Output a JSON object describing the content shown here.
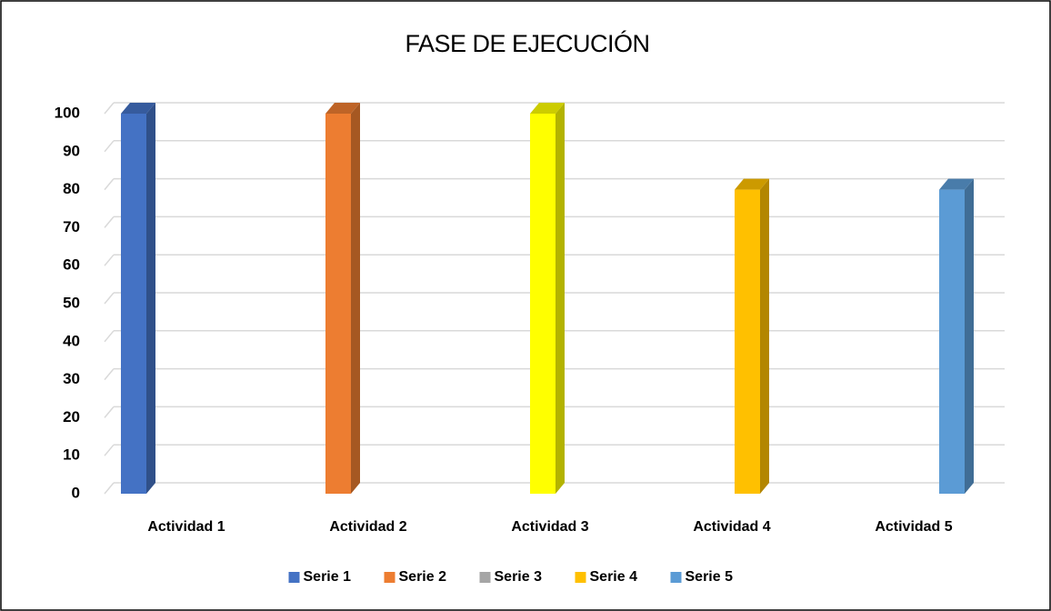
{
  "chart_data": {
    "type": "bar3d",
    "title": "FASE DE EJECUCIÓN",
    "categories": [
      "Actividad 1",
      "Actividad 2",
      "Actividad 3",
      "Actividad 4",
      "Actividad 5"
    ],
    "series": [
      {
        "name": "Serie 1",
        "color": "#4472c4",
        "values": [
          100,
          null,
          null,
          null,
          null
        ]
      },
      {
        "name": "Serie 2",
        "color": "#ed7d31",
        "values": [
          null,
          100,
          null,
          null,
          null
        ]
      },
      {
        "name": "Serie 3",
        "color": "#a5a5a5",
        "bar_color": "#ffff00",
        "values": [
          null,
          null,
          100,
          null,
          null
        ]
      },
      {
        "name": "Serie 4",
        "color": "#ffc000",
        "values": [
          null,
          null,
          null,
          80,
          null
        ]
      },
      {
        "name": "Serie 5",
        "color": "#5b9bd5",
        "values": [
          null,
          null,
          null,
          null,
          80
        ]
      }
    ],
    "ylim": [
      0,
      100
    ],
    "yticks": [
      0,
      10,
      20,
      30,
      40,
      50,
      60,
      70,
      80,
      90,
      100
    ],
    "grid": true,
    "legend": "bottom"
  }
}
